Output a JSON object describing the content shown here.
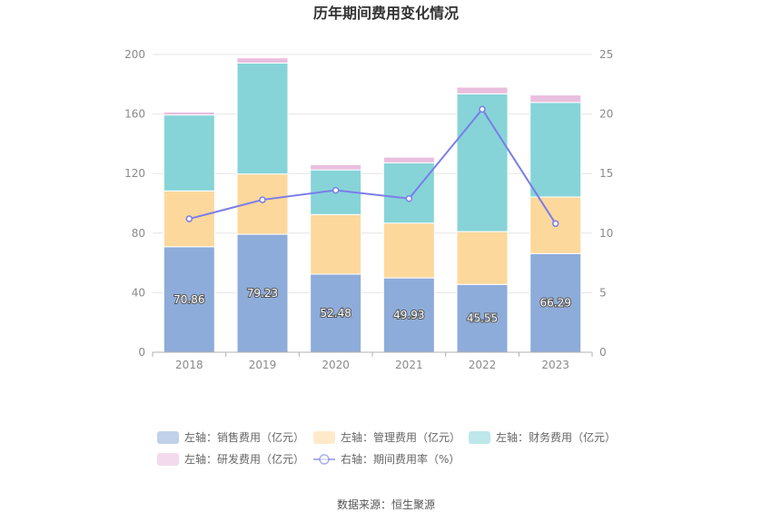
{
  "chart_data": {
    "type": "bar",
    "title": "历年期间费用变化情况",
    "categories": [
      "2018",
      "2019",
      "2020",
      "2021",
      "2022",
      "2023"
    ],
    "series": [
      {
        "name": "左轴：销售费用（亿元）",
        "axis": "left",
        "type": "bar",
        "color": "#8eacd9",
        "values": [
          70.86,
          79.23,
          52.48,
          49.93,
          45.55,
          66.29
        ],
        "labels": [
          "70.86",
          "79.23",
          "52.48",
          "49.93",
          "45.55",
          "66.29"
        ]
      },
      {
        "name": "左轴：管理费用（亿元）",
        "axis": "left",
        "type": "bar",
        "color": "#fdd89c",
        "values": [
          37.5,
          40.5,
          40.0,
          36.8,
          35.5,
          38.0
        ]
      },
      {
        "name": "左轴：财务费用（亿元）",
        "axis": "left",
        "type": "bar",
        "color": "#86d4d8",
        "values": [
          51.0,
          74.5,
          30.0,
          40.5,
          92.5,
          63.5
        ]
      },
      {
        "name": "左轴：研发费用（亿元）",
        "axis": "left",
        "type": "bar",
        "color": "#e9bede",
        "values": [
          2.0,
          3.5,
          3.5,
          3.8,
          4.5,
          5.0
        ]
      },
      {
        "name": "右轴：期间费用率（%）",
        "axis": "right",
        "type": "line",
        "color": "#7a7de8",
        "values": [
          11.2,
          12.8,
          13.6,
          12.9,
          20.4,
          10.8
        ]
      }
    ],
    "ylim_left": [
      0,
      200
    ],
    "ylim_right": [
      0,
      25
    ],
    "left_ticks": [
      0,
      40,
      80,
      120,
      160,
      200
    ],
    "right_ticks": [
      0,
      5,
      10,
      15,
      20,
      25
    ],
    "legend_position": "bottom",
    "grid": true
  },
  "source_text": "数据来源：恒生聚源"
}
